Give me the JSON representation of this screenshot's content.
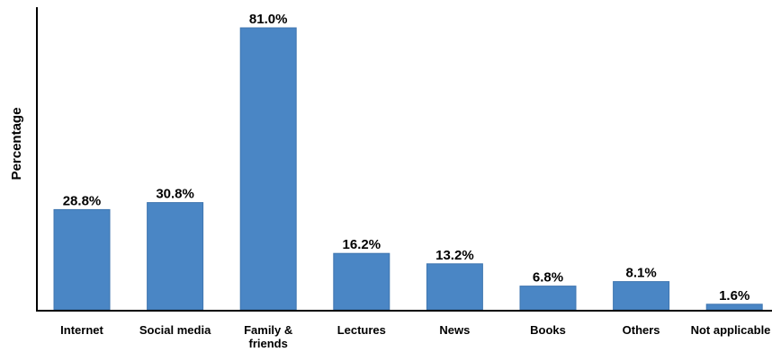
{
  "chart_data": {
    "type": "bar",
    "title": "",
    "xlabel": "",
    "ylabel": "Percentage",
    "categories": [
      [
        "Internet"
      ],
      [
        "Social media"
      ],
      [
        "Family &",
        "friends"
      ],
      [
        "Lectures"
      ],
      [
        "News"
      ],
      [
        "Books"
      ],
      [
        "Others"
      ],
      [
        "Not applicable"
      ]
    ],
    "values": [
      28.8,
      30.8,
      81.0,
      16.2,
      13.2,
      6.8,
      8.1,
      1.6
    ],
    "value_labels": [
      "28.8%",
      "30.8%",
      "81.0%",
      "16.2%",
      "13.2%",
      "6.8%",
      "8.1%",
      "1.6%"
    ],
    "ylim": [
      0,
      81.0
    ],
    "grid": false,
    "legend": "none",
    "colors": {
      "bar": "#4a86c5",
      "bar_stroke": "#3f76b0",
      "axis": "#000000"
    }
  }
}
